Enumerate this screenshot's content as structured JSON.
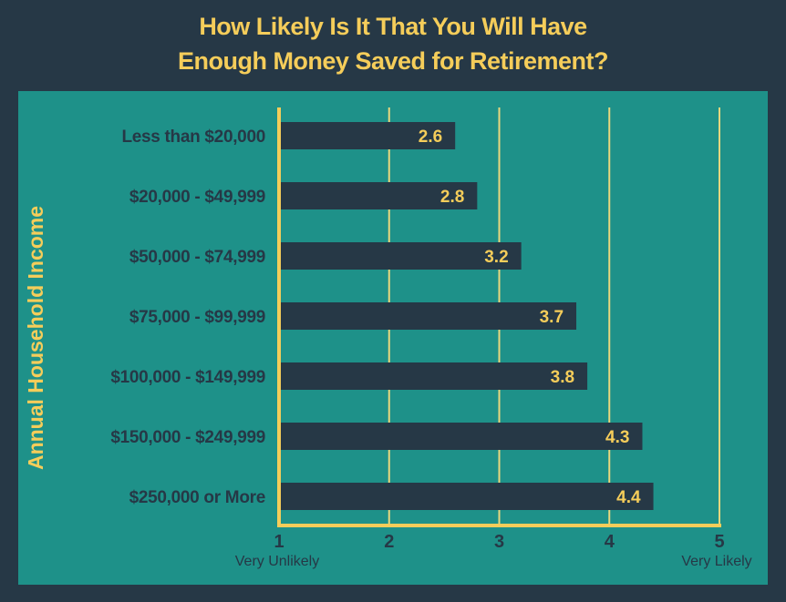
{
  "chart_data": {
    "type": "bar",
    "orientation": "horizontal",
    "title_line1": "How Likely Is It That You Will Have",
    "title_line2": "Enough Money Saved for Retirement?",
    "ylabel": "Annual Household Income",
    "xlabel": "",
    "categories": [
      "Less than $20,000",
      "$20,000 - $49,999",
      "$50,000 - $74,999",
      "$75,000 - $99,999",
      "$100,000 - $149,999",
      "$150,000 - $249,999",
      "$250,000 or More"
    ],
    "values": [
      2.6,
      2.8,
      3.2,
      3.7,
      3.8,
      4.3,
      4.4
    ],
    "value_labels": [
      "2.6",
      "2.8",
      "3.2",
      "3.7",
      "3.8",
      "4.3",
      "4.4"
    ],
    "xlim": [
      1,
      5
    ],
    "xticks": [
      "1",
      "2",
      "3",
      "4",
      "5"
    ],
    "x_end_labels": {
      "low": "Very Unlikely",
      "high": "Very Likely"
    },
    "grid": true,
    "colors": {
      "background": "#263846",
      "panel": "#1e9189",
      "bar": "#263846",
      "accent": "#f5cd5a",
      "gridline": "#e9d77e"
    }
  }
}
